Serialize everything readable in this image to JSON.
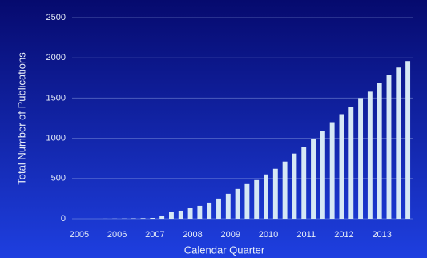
{
  "chart_data": {
    "type": "bar",
    "x_label": "Calendar Quarter",
    "y_label": "Total Number of Publications",
    "categories": [
      "2005",
      null,
      null,
      null,
      "2006",
      null,
      null,
      null,
      "2007",
      null,
      null,
      null,
      "2008",
      null,
      null,
      null,
      "2009",
      null,
      null,
      null,
      "2010",
      null,
      null,
      null,
      "2011",
      null,
      null,
      null,
      "2012",
      null,
      null,
      null,
      "2013",
      null,
      null,
      null
    ],
    "values": [
      0,
      0,
      0,
      1,
      2,
      3,
      5,
      7,
      10,
      40,
      80,
      100,
      130,
      160,
      200,
      250,
      310,
      370,
      430,
      480,
      550,
      620,
      710,
      810,
      890,
      990,
      1090,
      1200,
      1300,
      1390,
      1500,
      1580,
      1690,
      1790,
      1880,
      1960
    ],
    "color": "#d6e8f5",
    "ylim": [
      0,
      2500
    ],
    "yticks": [
      0,
      500,
      1000,
      1500,
      2000,
      2500
    ],
    "grid": true
  }
}
